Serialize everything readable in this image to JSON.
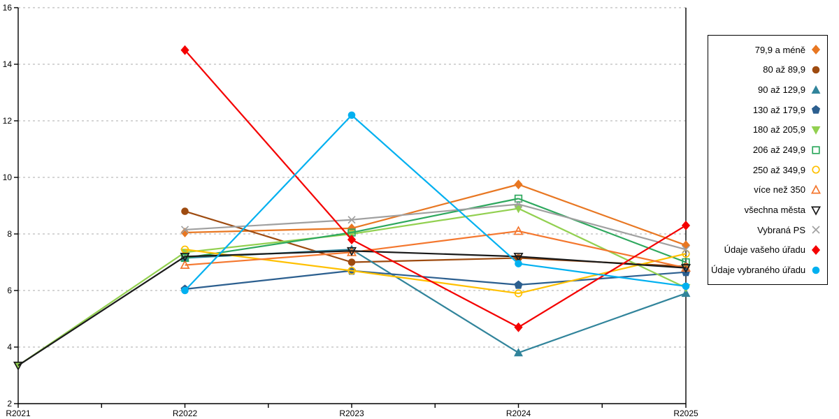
{
  "chart_data": {
    "type": "line",
    "title": "",
    "xlabel": "",
    "ylabel": "",
    "categories": [
      "R2021",
      "R2022",
      "R2023",
      "R2024",
      "R2025"
    ],
    "ylim": [
      2,
      16
    ],
    "ytick_step": 2,
    "y_tick_labels": [
      "2",
      "4",
      "6",
      "8",
      "10",
      "12",
      "14",
      "16"
    ],
    "grid": "horizontal-dashed",
    "gridline_color": "#ababab",
    "axis_color": "#000000",
    "legend_position": "right",
    "series": [
      {
        "name": "79,9 a méně",
        "color": "#E87722",
        "marker": "diamond",
        "filled": true,
        "values": [
          null,
          8.05,
          8.2,
          9.75,
          7.6
        ]
      },
      {
        "name": "80 až 89,9",
        "color": "#9E4B10",
        "marker": "circle",
        "filled": true,
        "values": [
          null,
          8.8,
          7.0,
          7.15,
          6.85
        ]
      },
      {
        "name": "90 až 129,9",
        "color": "#31849B",
        "marker": "triangle-up",
        "filled": true,
        "values": [
          null,
          7.15,
          7.45,
          3.8,
          5.9
        ]
      },
      {
        "name": "130 až 179,9",
        "color": "#2C5F8F",
        "marker": "pentagon",
        "filled": true,
        "values": [
          null,
          6.05,
          6.7,
          6.2,
          6.65
        ]
      },
      {
        "name": "180 až 205,9",
        "color": "#92D050",
        "marker": "triangle-down",
        "filled": true,
        "values": [
          3.35,
          7.35,
          8.0,
          8.9,
          6.1
        ]
      },
      {
        "name": "206 až 249,9",
        "color": "#2EA85E",
        "marker": "square",
        "filled": false,
        "values": [
          null,
          7.15,
          8.05,
          9.25,
          7.0
        ]
      },
      {
        "name": "250 až 349,9",
        "color": "#FFC000",
        "marker": "circle",
        "filled": false,
        "values": [
          null,
          7.45,
          6.7,
          5.9,
          7.3
        ]
      },
      {
        "name": "více než 350",
        "color": "#F4772E",
        "marker": "triangle-up",
        "filled": false,
        "values": [
          null,
          6.9,
          7.35,
          8.1,
          6.8
        ]
      },
      {
        "name": "všechna města",
        "color": "#1A1A1A",
        "marker": "triangle-down",
        "filled": false,
        "values": [
          3.35,
          7.2,
          7.4,
          7.2,
          6.8
        ]
      },
      {
        "name": "Vybraná PS",
        "color": "#A0A0A0",
        "marker": "x",
        "filled": false,
        "values": [
          null,
          8.15,
          8.5,
          9.05,
          7.45
        ]
      },
      {
        "name": "Údaje vašeho úřadu",
        "color": "#F40000",
        "marker": "diamond",
        "filled": true,
        "values": [
          null,
          14.5,
          7.8,
          4.7,
          8.3
        ]
      },
      {
        "name": "Údaje vybraného úřadu",
        "color": "#00B0F0",
        "marker": "circle",
        "filled": true,
        "values": [
          null,
          6.0,
          12.2,
          6.95,
          6.15
        ]
      }
    ]
  }
}
